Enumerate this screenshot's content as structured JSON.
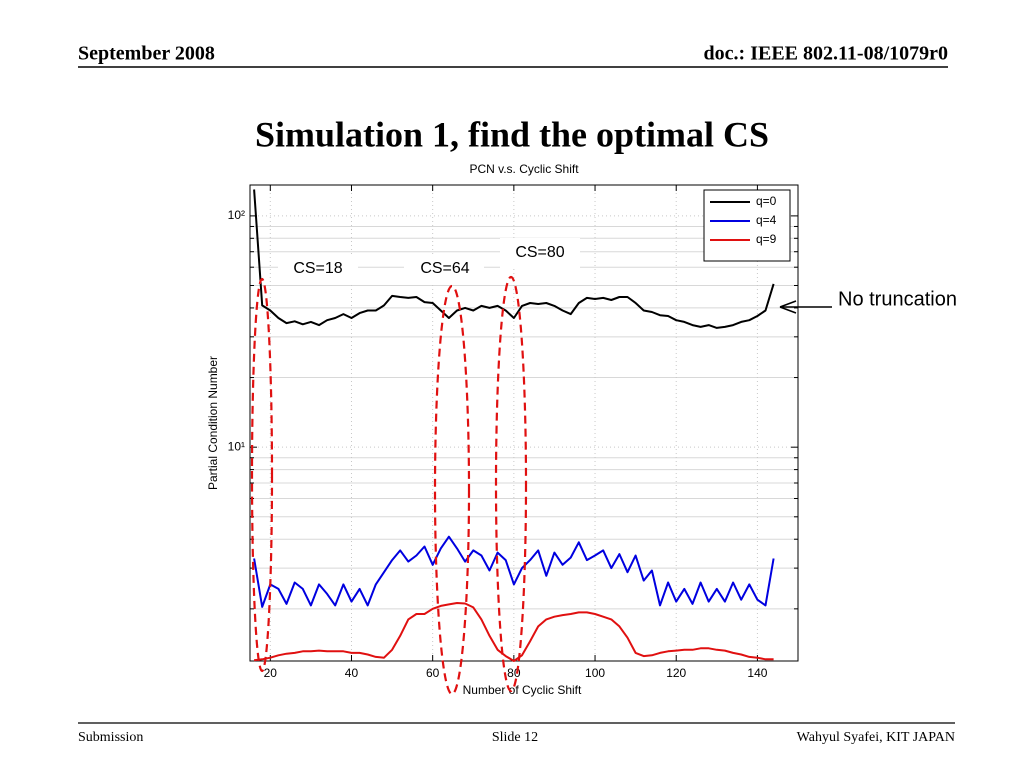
{
  "header": {
    "left": "September 2008",
    "right": "doc.: IEEE 802.11-08/1079r0"
  },
  "slide_title": "Simulation 1, find the optimal CS",
  "annotations": {
    "cs18": "CS=18",
    "cs64": "CS=64",
    "cs80": "CS=80",
    "note": "No truncation"
  },
  "footer": {
    "left": "Submission",
    "center": "Slide 12",
    "right": "Wahyul Syafei, KIT JAPAN"
  },
  "chart_data": {
    "type": "line",
    "title": "PCN v.s. Cyclic Shift",
    "x_label": "Number of Cyclic Shift",
    "y_label": "Partial Condition Number",
    "log_y": true,
    "grid": true,
    "legend": "upper right",
    "xlim": [
      15,
      150
    ],
    "xticks": [
      20,
      40,
      60,
      80,
      100,
      120,
      140
    ],
    "ylim": [
      1.19,
      136
    ],
    "yticks": [
      {
        "value": 10,
        "label": "10¹"
      },
      {
        "value": 100,
        "label": "10²"
      }
    ],
    "x": [
      16,
      18,
      20,
      22,
      24,
      26,
      28,
      30,
      32,
      34,
      36,
      38,
      40,
      42,
      44,
      46,
      48,
      50,
      52,
      54,
      56,
      58,
      60,
      62,
      64,
      66,
      68,
      70,
      72,
      74,
      76,
      78,
      80,
      82,
      84,
      86,
      88,
      90,
      92,
      94,
      96,
      98,
      100,
      102,
      104,
      106,
      108,
      110,
      112,
      114,
      116,
      118,
      120,
      122,
      124,
      126,
      128,
      130,
      132,
      134,
      136,
      138,
      140,
      142,
      144
    ],
    "series": [
      {
        "name": "q=0",
        "color": "#000000",
        "values": [
          130,
          41,
          39,
          36.2,
          34.4,
          35,
          34,
          34.8,
          33.7,
          35.4,
          36.2,
          37.6,
          36.2,
          38,
          39,
          39,
          41,
          45.1,
          44.6,
          44.2,
          44.6,
          42.4,
          42,
          39,
          36.2,
          39,
          40,
          39,
          40.8,
          40,
          40.8,
          39,
          36.2,
          40.8,
          42,
          41.6,
          42,
          40.8,
          39,
          37.6,
          42,
          44.2,
          43.7,
          44.2,
          43.3,
          44.6,
          44.6,
          42,
          39,
          38.4,
          37.2,
          36.9,
          35.4,
          34.8,
          33.7,
          33.1,
          33.7,
          32.8,
          33.1,
          33.7,
          34.8,
          35.4,
          36.9,
          39,
          50.8
        ]
      },
      {
        "name": "q=4",
        "color": "#0000e0",
        "values": [
          3.3,
          2.04,
          2.55,
          2.44,
          2.1,
          2.6,
          2.44,
          2.07,
          2.55,
          2.32,
          2.07,
          2.55,
          2.15,
          2.44,
          2.07,
          2.55,
          2.88,
          3.25,
          3.58,
          3.2,
          3.4,
          3.72,
          3.1,
          3.65,
          4.1,
          3.65,
          3.2,
          3.58,
          3.4,
          2.93,
          3.5,
          3.25,
          2.55,
          3.0,
          3.25,
          3.58,
          2.78,
          3.5,
          3.1,
          3.33,
          3.88,
          3.25,
          3.4,
          3.58,
          3.0,
          3.45,
          2.88,
          3.4,
          2.65,
          2.93,
          2.07,
          2.6,
          2.15,
          2.44,
          2.1,
          2.6,
          2.15,
          2.44,
          2.15,
          2.6,
          2.19,
          2.55,
          2.19,
          2.07,
          3.3
        ]
      },
      {
        "name": "q=9",
        "color": "#e01010",
        "values": [
          1.2,
          1.21,
          1.23,
          1.26,
          1.28,
          1.29,
          1.31,
          1.31,
          1.32,
          1.31,
          1.31,
          1.31,
          1.29,
          1.29,
          1.27,
          1.24,
          1.23,
          1.33,
          1.53,
          1.8,
          1.9,
          1.9,
          2.0,
          2.06,
          2.09,
          2.12,
          2.11,
          2.03,
          1.8,
          1.53,
          1.33,
          1.25,
          1.19,
          1.26,
          1.45,
          1.68,
          1.8,
          1.85,
          1.88,
          1.9,
          1.93,
          1.93,
          1.9,
          1.85,
          1.8,
          1.68,
          1.5,
          1.29,
          1.25,
          1.26,
          1.29,
          1.31,
          1.32,
          1.33,
          1.33,
          1.35,
          1.35,
          1.33,
          1.32,
          1.29,
          1.27,
          1.24,
          1.23,
          1.21,
          1.21
        ]
      }
    ]
  }
}
